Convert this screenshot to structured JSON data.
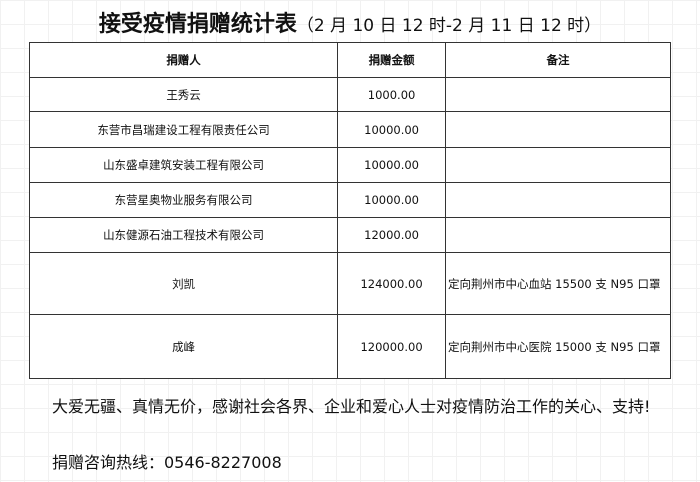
{
  "title": {
    "main": "接受疫情捐赠统计表",
    "sub": "（2 月 10 日 12 时-2 月 11 日 12 时）"
  },
  "table": {
    "headers": [
      "捐赠人",
      "捐赠金额",
      "备注"
    ],
    "rows": [
      {
        "donor": "王秀云",
        "amount": "1000.00",
        "note": ""
      },
      {
        "donor": "东营市昌瑞建设工程有限责任公司",
        "amount": "10000.00",
        "note": ""
      },
      {
        "donor": "山东盛卓建筑安装工程有限公司",
        "amount": "10000.00",
        "note": ""
      },
      {
        "donor": "东营星奥物业服务有限公司",
        "amount": "10000.00",
        "note": ""
      },
      {
        "donor": "山东健源石油工程技术有限公司",
        "amount": "12000.00",
        "note": ""
      },
      {
        "donor": "刘凯",
        "amount": "124000.00",
        "note": "定向荆州市中心血站 15500 支 N95 口罩"
      },
      {
        "donor": "成峰",
        "amount": "120000.00",
        "note": "定向荆州市中心医院 15000 支 N95 口罩"
      }
    ]
  },
  "thanks": "大爱无疆、真情无价，感谢社会各界、企业和爱心人士对疫情防治工作的关心、支持!",
  "hotline": "捐赠咨询热线：0546-8227008"
}
